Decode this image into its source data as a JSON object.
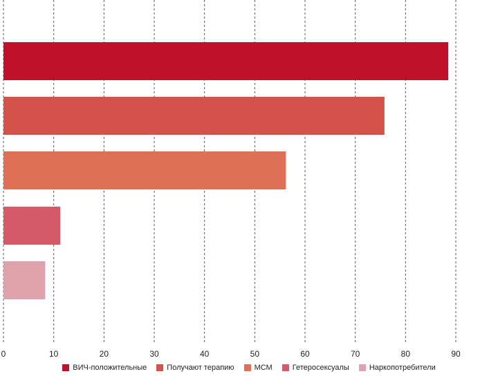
{
  "chart_data": {
    "type": "bar",
    "orientation": "horizontal",
    "title": "",
    "xlabel": "",
    "ylabel": "",
    "xlim": [
      0,
      90
    ],
    "x_ticks": [
      "0",
      "10",
      "20",
      "30",
      "40",
      "50",
      "60",
      "70",
      "80",
      "90"
    ],
    "grid": "vertical dashed",
    "legend_position": "bottom",
    "series": [
      {
        "name": "ВИЧ-положительные",
        "value": 88.5,
        "color": "#c01128"
      },
      {
        "name": "Получают терапию",
        "value": 75.8,
        "color": "#d4524a"
      },
      {
        "name": "МСМ",
        "value": 56.2,
        "color": "#e07055"
      },
      {
        "name": "Гетеросексуалы",
        "value": 11.3,
        "color": "#d45a6a"
      },
      {
        "name": "Наркопотребители",
        "value": 8.3,
        "color": "#dea3aa"
      }
    ]
  }
}
